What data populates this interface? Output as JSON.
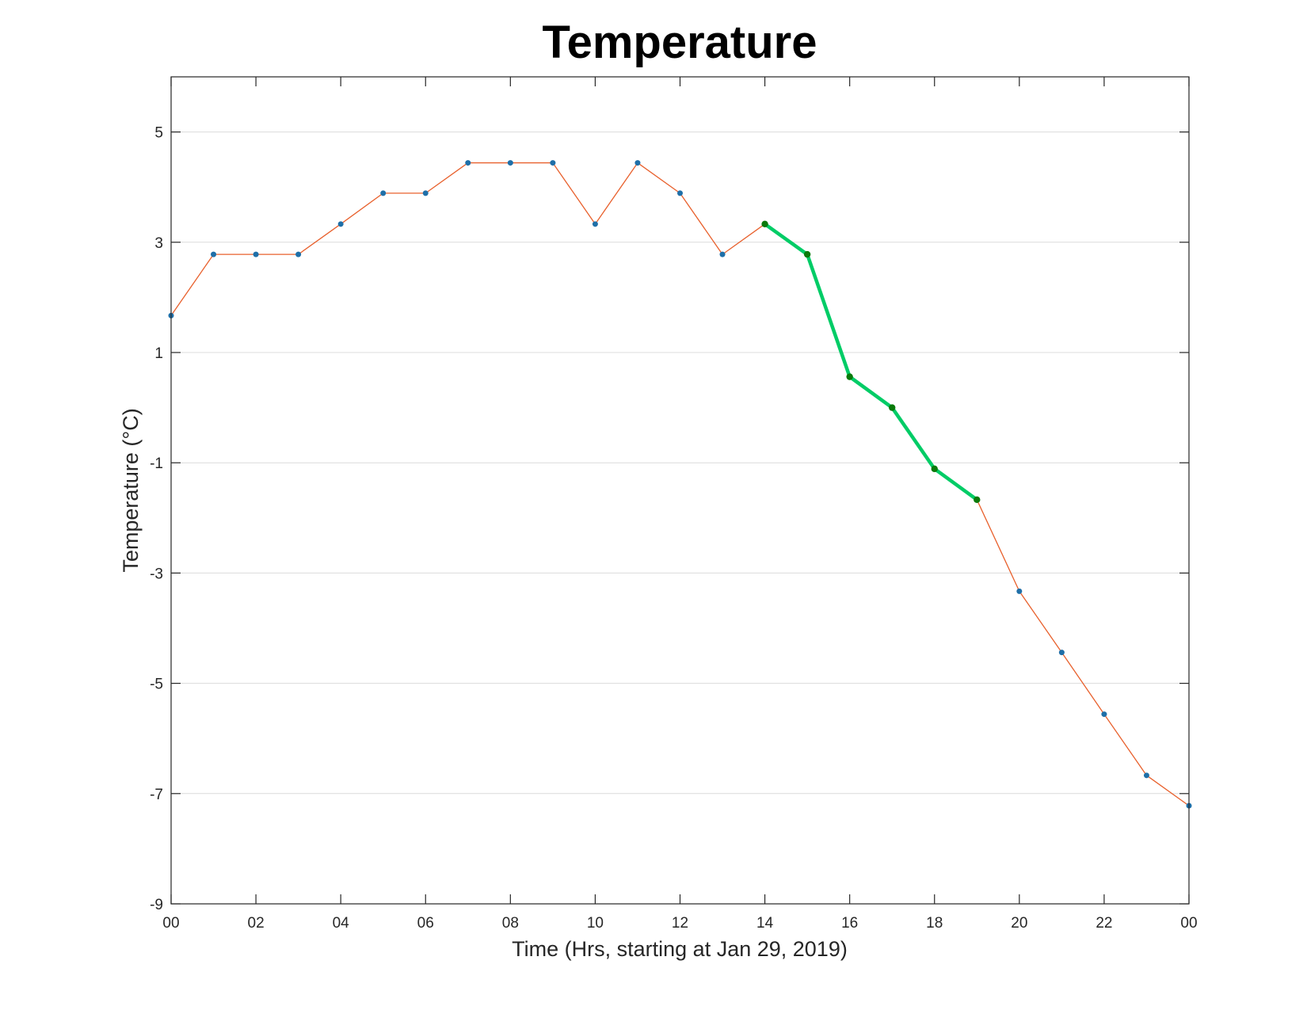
{
  "chart_data": {
    "type": "line",
    "title": "Temperature",
    "xlabel": "Time (Hrs, starting at Jan 29, 2019)",
    "ylabel": "Temperature (°C)",
    "xlim": [
      0,
      24
    ],
    "ylim": [
      -9,
      6
    ],
    "x_ticks": [
      "00",
      "02",
      "04",
      "06",
      "08",
      "10",
      "12",
      "14",
      "16",
      "18",
      "20",
      "22",
      "00"
    ],
    "y_ticks": [
      5,
      3,
      1,
      -1,
      -3,
      -5,
      -7,
      -9
    ],
    "grid": "horizontal",
    "series": [
      {
        "x": [
          0,
          1,
          2,
          3,
          4,
          5,
          6,
          7,
          8,
          9,
          10,
          11,
          12,
          13,
          14,
          15,
          16,
          17,
          18,
          19,
          20,
          21,
          22,
          23,
          24
        ],
        "values": [
          1.67,
          2.78,
          2.78,
          2.78,
          3.33,
          3.89,
          3.89,
          4.44,
          4.44,
          4.44,
          3.33,
          4.44,
          3.89,
          2.78,
          3.33,
          2.78,
          0.56,
          0.0,
          -1.11,
          -1.67,
          -3.33,
          -4.44,
          -5.56,
          -6.67,
          -7.22
        ],
        "line_color": "#e8602c",
        "marker_color": "#1f6fa8"
      },
      {
        "x": [
          14,
          15,
          16,
          17,
          18,
          19
        ],
        "values": [
          3.33,
          2.78,
          0.56,
          0.0,
          -1.11,
          -1.67
        ],
        "line_color": "#00cc66",
        "marker_color": "#0a7a0a"
      }
    ]
  }
}
